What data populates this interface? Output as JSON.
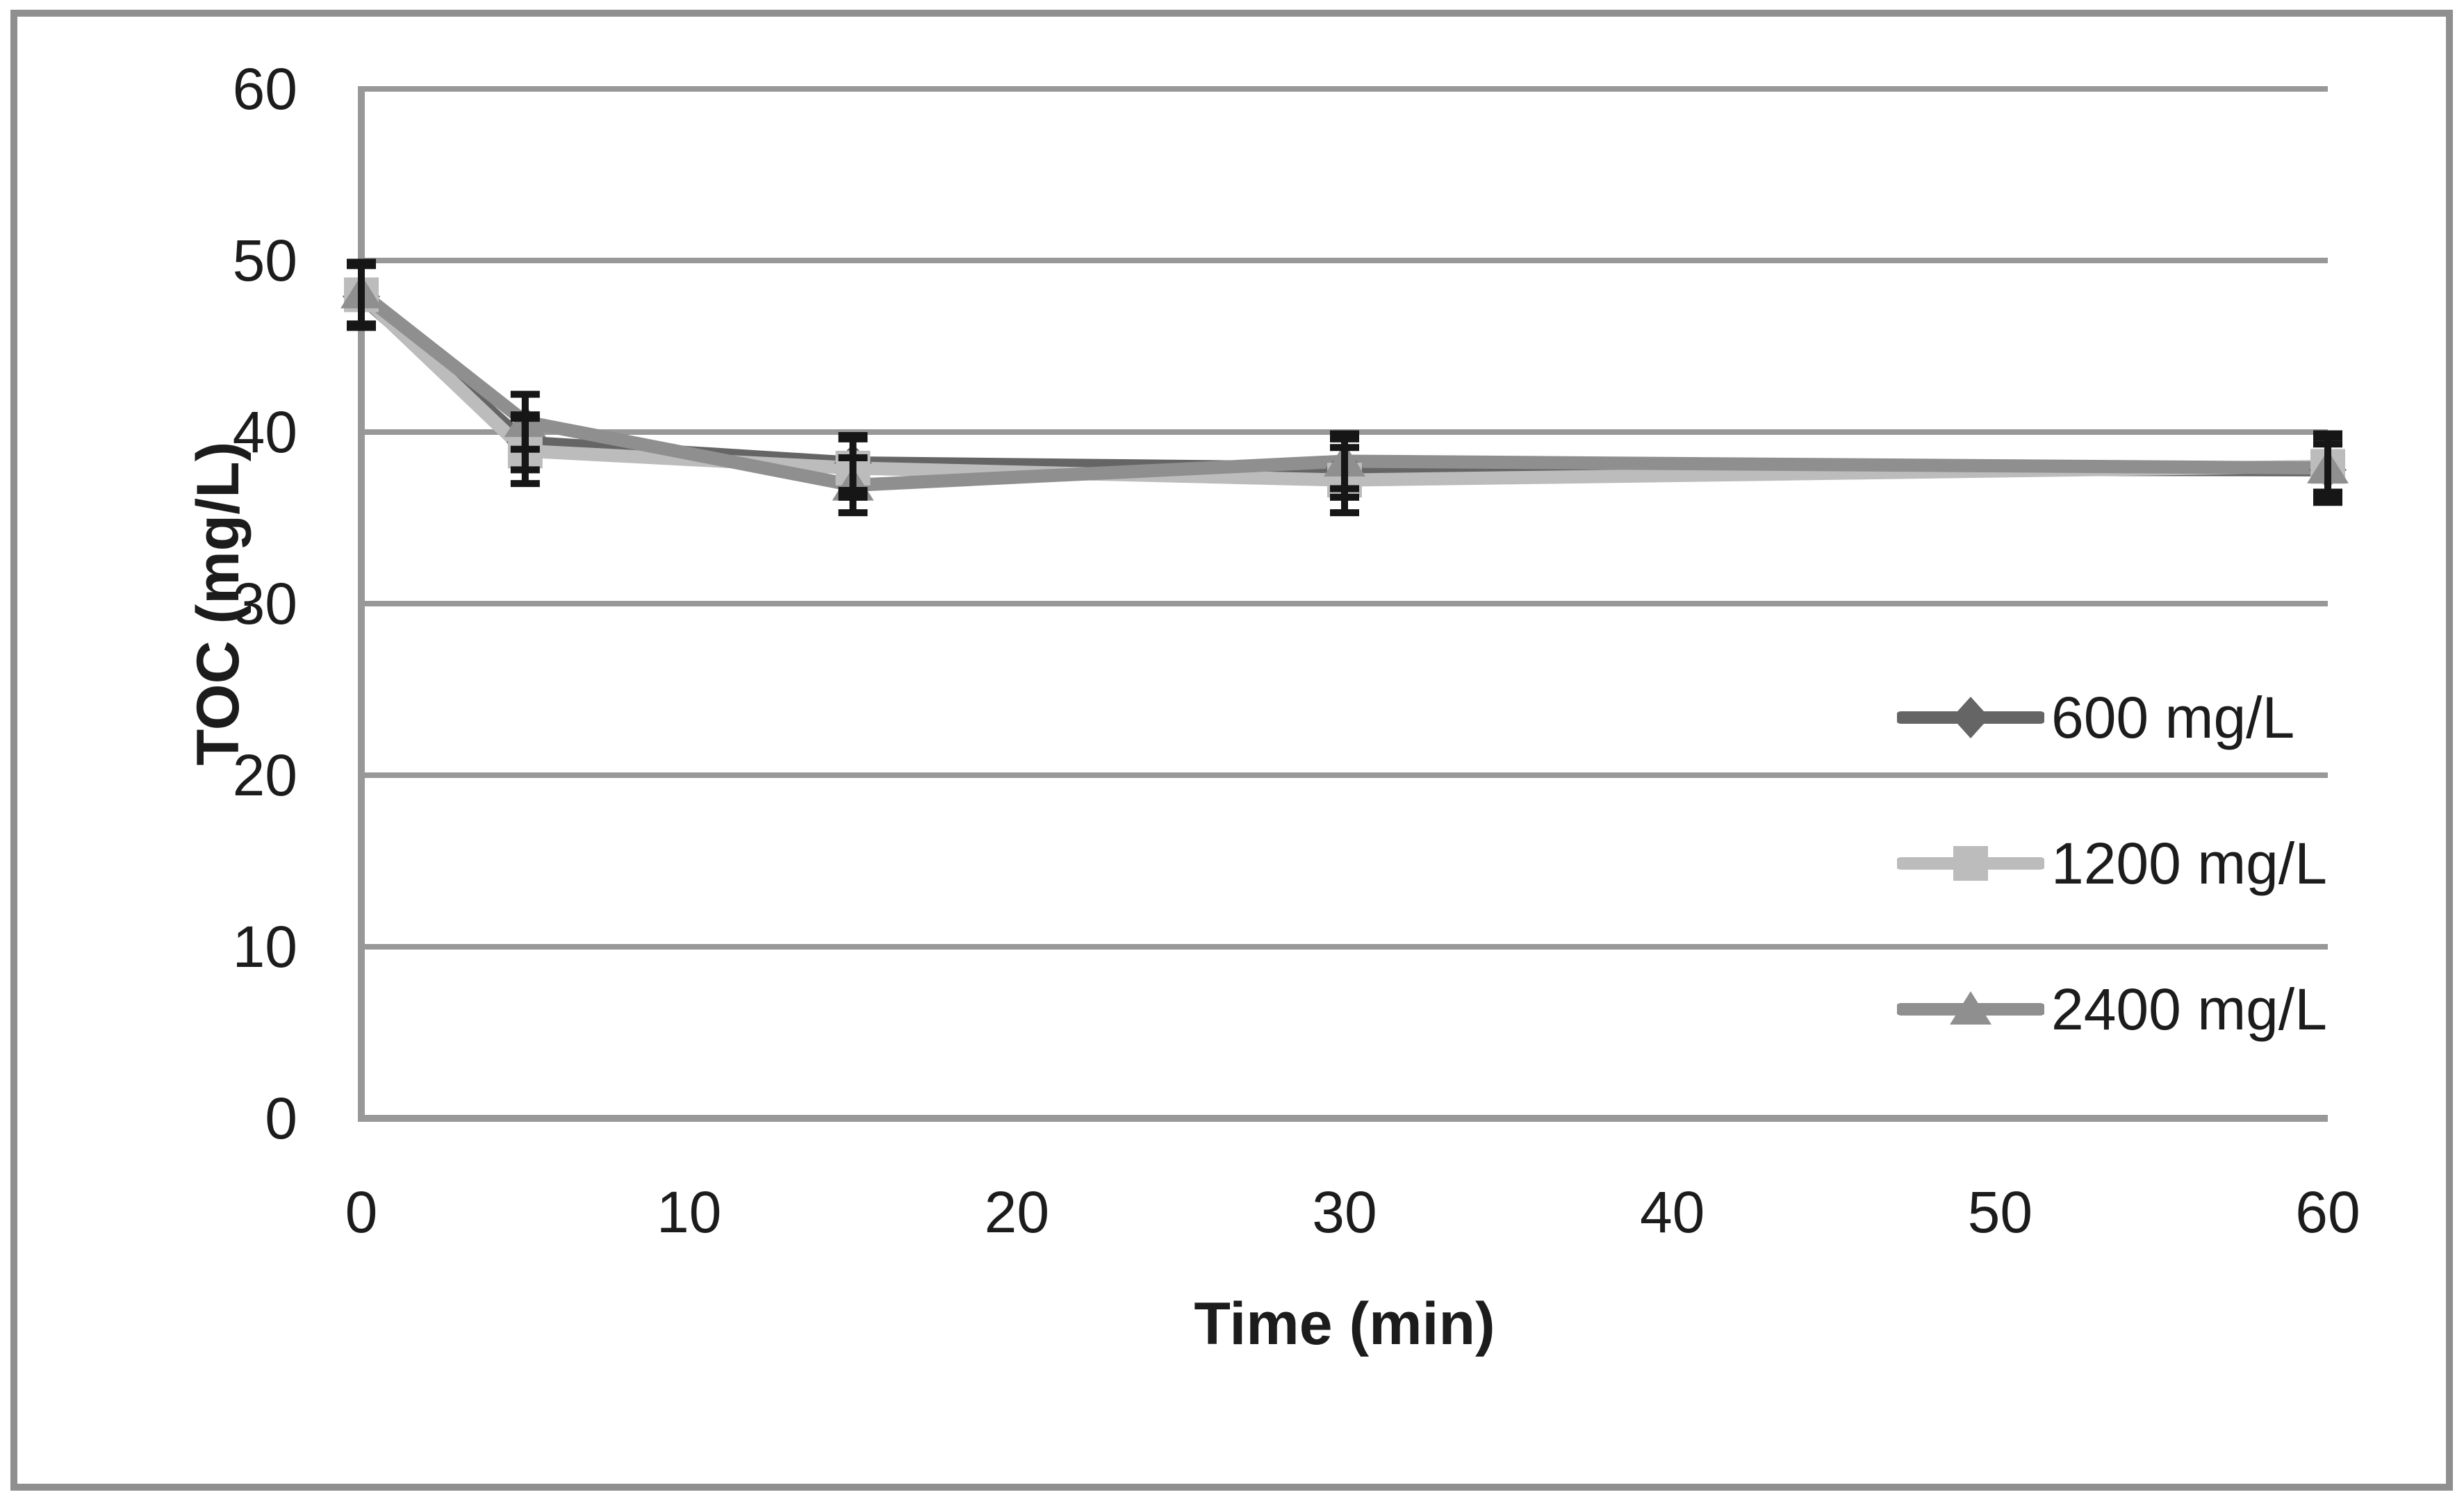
{
  "figure": {
    "background": "#ffffff",
    "border_color": "#8f8f8f"
  },
  "chart_data": {
    "type": "line",
    "title": "",
    "xlabel": "Time (min)",
    "ylabel": "TOC (mg/L)",
    "xlim": [
      0,
      60
    ],
    "ylim": [
      0,
      60
    ],
    "x_ticks": [
      0,
      10,
      20,
      30,
      40,
      50,
      60
    ],
    "y_ticks": [
      0,
      10,
      20,
      30,
      40,
      50,
      60
    ],
    "grid": "horizontal",
    "grid_color": "#989898",
    "axis_color": "#989898",
    "error_bar_color": "#161616",
    "text_color": "#1c1c1c",
    "legend_position": "inside-right",
    "x": [
      0,
      5,
      15,
      30,
      60
    ],
    "series": [
      {
        "name": "600 mg/L",
        "marker": "diamond",
        "color": "#656565",
        "values": [
          47.9,
          39.4,
          38.2,
          37.9,
          37.8
        ],
        "error": [
          1.8,
          1.6,
          1.6,
          1.7,
          1.9
        ]
      },
      {
        "name": "1200 mg/L",
        "marker": "square",
        "color": "#bcbcbc",
        "values": [
          48.0,
          38.9,
          37.9,
          37.2,
          38.0
        ],
        "error": [
          1.8,
          1.9,
          1.7,
          1.9,
          1.9
        ]
      },
      {
        "name": "2400 mg/L",
        "marker": "triangle",
        "color": "#8f8f8f",
        "values": [
          48.1,
          40.6,
          36.9,
          38.3,
          37.9
        ],
        "error": [
          1.8,
          1.6,
          1.6,
          1.6,
          1.4
        ]
      }
    ]
  },
  "layout_note": ""
}
